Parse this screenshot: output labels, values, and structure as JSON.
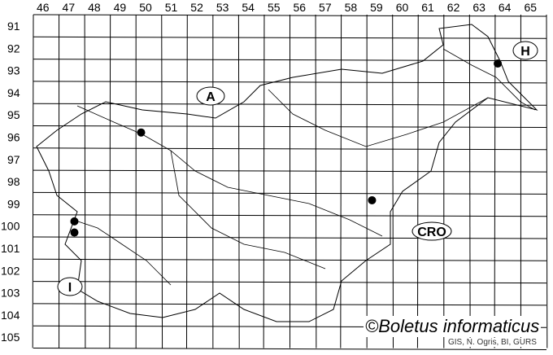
{
  "grid": {
    "columns": [
      "46",
      "47",
      "48",
      "49",
      "50",
      "51",
      "52",
      "53",
      "54",
      "55",
      "56",
      "57",
      "58",
      "59",
      "60",
      "61",
      "62",
      "63",
      "64",
      "65"
    ],
    "rows": [
      "91",
      "92",
      "93",
      "94",
      "95",
      "96",
      "97",
      "98",
      "99",
      "100",
      "101",
      "102",
      "103",
      "104",
      "105"
    ]
  },
  "countries": [
    {
      "id": "austria",
      "label": "A"
    },
    {
      "id": "hungary",
      "label": "H"
    },
    {
      "id": "croatia",
      "label": "CRO"
    },
    {
      "id": "italy",
      "label": "I"
    }
  ],
  "records": [
    {
      "col": 50.2,
      "row": 96.3
    },
    {
      "col": 47.6,
      "row": 100.3
    },
    {
      "col": 47.6,
      "row": 100.8
    },
    {
      "col": 59.2,
      "row": 99.35
    },
    {
      "col": 64.1,
      "row": 93.2
    }
  ],
  "copyright": "©Boletus informaticus",
  "credit": "GIS, N. Ogris, BI, GURS",
  "colors": {
    "lines": "#000000",
    "marker": "#000000",
    "background": "#ffffff"
  }
}
